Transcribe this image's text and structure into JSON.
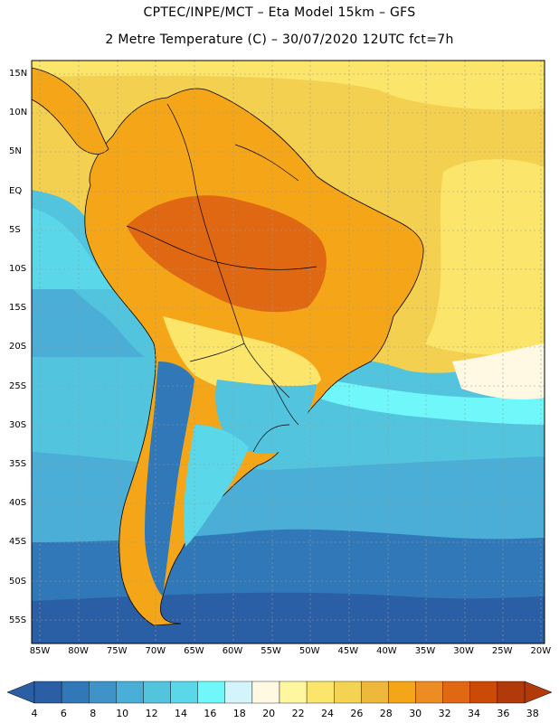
{
  "title": {
    "line1": "CPTEC/INPE/MCT –  Eta Model 15km – GFS",
    "line2": "2 Metre Temperature (C) – 30/07/2020 12UTC fct=7h"
  },
  "map": {
    "lat_labels": [
      "15N",
      "10N",
      "5N",
      "EQ",
      "5S",
      "10S",
      "15S",
      "20S",
      "25S",
      "30S",
      "35S",
      "40S",
      "45S",
      "50S",
      "55S"
    ],
    "lon_labels": [
      "85W",
      "80W",
      "75W",
      "70W",
      "65W",
      "60W",
      "55W",
      "50W",
      "45W",
      "40W",
      "35W",
      "30W",
      "25W",
      "20W"
    ]
  },
  "colorbar": {
    "levels": [
      "4",
      "6",
      "8",
      "10",
      "12",
      "14",
      "16",
      "18",
      "20",
      "22",
      "24",
      "26",
      "28",
      "30",
      "32",
      "34",
      "36",
      "38"
    ],
    "colors": [
      "#2b5fa5",
      "#3078b8",
      "#3f93c8",
      "#4aaed6",
      "#52c4de",
      "#5ad7e8",
      "#6ff7f9",
      "#d4f4fb",
      "#fff8e3",
      "#fff6a0",
      "#fbe56b",
      "#f5d352",
      "#eeb83c",
      "#f4a618",
      "#ec8c22",
      "#e06812",
      "#cb4a05",
      "#b23a0a"
    ]
  }
}
